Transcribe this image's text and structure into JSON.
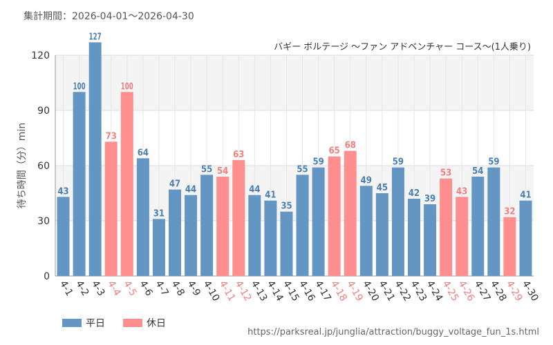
{
  "period_label": "集計期間：2026-04-01～2026-04-30",
  "source_url": "https://parksreal.jp/junglia/attraction/buggy_voltage_fun_1s.html",
  "legend": {
    "weekday": "平日",
    "holiday": "休日"
  },
  "colors": {
    "weekday": "#6496c3",
    "holiday": "#ff8f8f",
    "holiday_text": "#f08080",
    "weekday_text": "#4a7fb3"
  },
  "chart_data": {
    "type": "bar",
    "title": "バギー ボルテージ ～ファン アドベンチャー コース～(1人乗り)",
    "ylabel": "待ち時間（分）min",
    "ylim": [
      0,
      120
    ],
    "yticks": [
      0,
      30,
      60,
      90,
      120
    ],
    "grid": true,
    "categories": [
      "4-1",
      "4-2",
      "4-3",
      "4-4",
      "4-5",
      "4-6",
      "4-7",
      "4-8",
      "4-9",
      "4-10",
      "4-11",
      "4-12",
      "4-13",
      "4-14",
      "4-15",
      "4-16",
      "4-17",
      "4-18",
      "4-19",
      "4-20",
      "4-21",
      "4-22",
      "4-23",
      "4-24",
      "4-25",
      "4-26",
      "4-27",
      "4-28",
      "4-29",
      "4-30"
    ],
    "values": [
      43,
      100,
      127,
      73,
      100,
      64,
      31,
      47,
      44,
      55,
      54,
      63,
      44,
      41,
      35,
      55,
      59,
      65,
      68,
      49,
      45,
      59,
      42,
      39,
      53,
      43,
      54,
      59,
      32,
      41
    ],
    "day_type": [
      "weekday",
      "weekday",
      "weekday",
      "holiday",
      "holiday",
      "weekday",
      "weekday",
      "weekday",
      "weekday",
      "weekday",
      "holiday",
      "holiday",
      "weekday",
      "weekday",
      "weekday",
      "weekday",
      "weekday",
      "holiday",
      "holiday",
      "weekday",
      "weekday",
      "weekday",
      "weekday",
      "weekday",
      "holiday",
      "holiday",
      "weekday",
      "weekday",
      "holiday",
      "weekday"
    ]
  }
}
